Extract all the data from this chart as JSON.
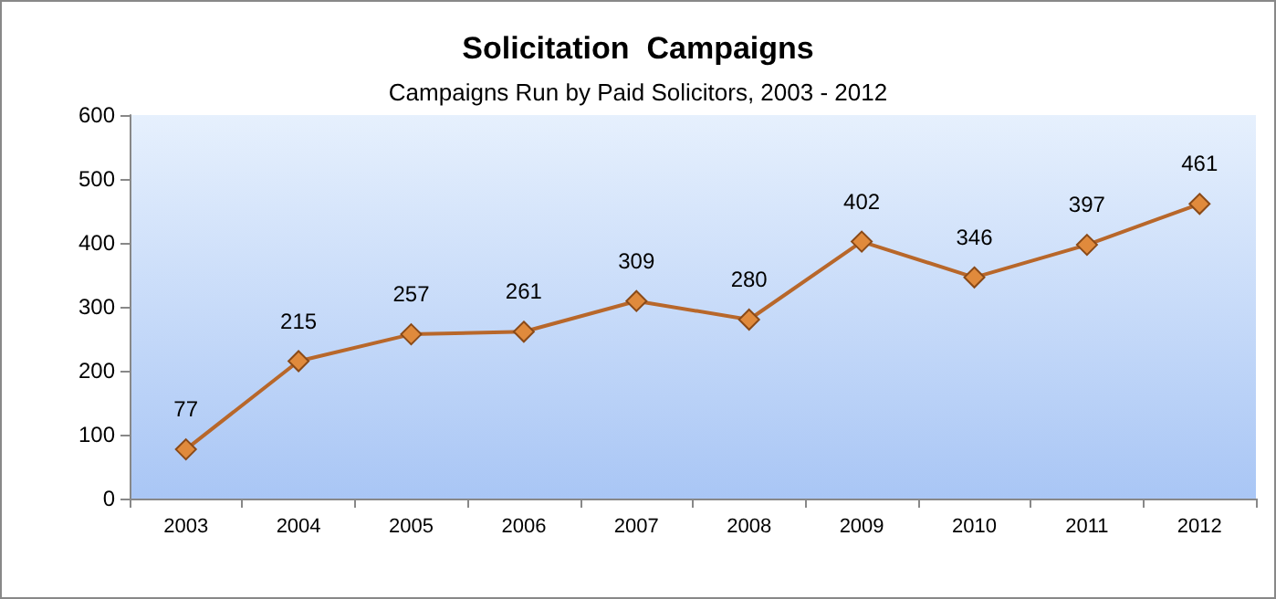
{
  "chart_data": {
    "type": "line",
    "title": "Solicitation  Campaigns",
    "subtitle": "Campaigns Run by Paid Solicitors, 2003 - 2012",
    "categories": [
      "2003",
      "2004",
      "2005",
      "2006",
      "2007",
      "2008",
      "2009",
      "2010",
      "2011",
      "2012"
    ],
    "series": [
      {
        "color": "#b8672a",
        "values": [
          77,
          215,
          257,
          261,
          309,
          280,
          402,
          346,
          397,
          461
        ]
      }
    ],
    "ylim": [
      0,
      600
    ],
    "yticks": [
      0,
      100,
      200,
      300,
      400,
      500,
      600
    ],
    "grid": false,
    "marker": "diamond",
    "line_style": "solid",
    "data_labels": true
  }
}
